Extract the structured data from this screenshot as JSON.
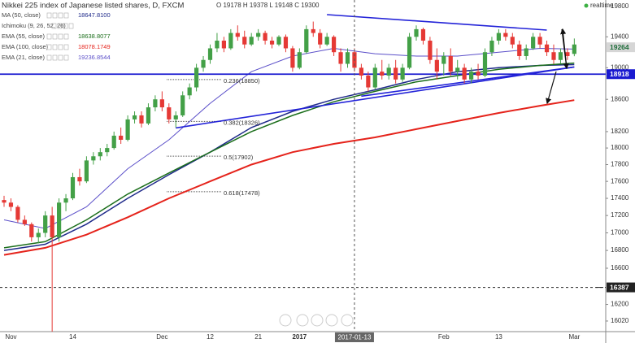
{
  "chart_data": {
    "type": "candlestick",
    "title": "Nikkei 225 index of Japanese listed shares, D, FXCM",
    "ohlc_label": "O 19178 H 19378 L 19148 C 19300",
    "realtime_label": "realtime",
    "log_scale": true,
    "grid": false,
    "up_color": "#43a047",
    "down_color": "#e53935",
    "categories": [
      null,
      "Nov",
      null,
      null,
      null,
      null,
      null,
      null,
      null,
      null,
      "14",
      null,
      null,
      null,
      null,
      null,
      null,
      null,
      null,
      null,
      null,
      null,
      null,
      "Dec",
      null,
      null,
      null,
      null,
      null,
      null,
      "12",
      null,
      null,
      null,
      null,
      null,
      null,
      "21",
      null,
      null,
      null,
      null,
      null,
      "2017",
      null,
      null,
      null,
      null,
      null,
      null,
      null,
      null,
      null,
      null,
      null,
      null,
      null,
      null,
      null,
      null,
      null,
      null,
      null,
      null,
      "Feb",
      null,
      null,
      null,
      null,
      null,
      null,
      null,
      "13",
      null,
      null,
      null,
      null,
      null,
      null,
      null,
      null,
      null,
      null,
      "Mar"
    ],
    "open": [
      17380,
      17350,
      17300,
      17150,
      17100,
      16950,
      17000,
      17200,
      16950,
      17350,
      17400,
      17650,
      17600,
      17850,
      17900,
      17950,
      18000,
      18150,
      18100,
      18350,
      18400,
      18300,
      18500,
      18600,
      18500,
      18350,
      18400,
      18650,
      18750,
      19000,
      19100,
      19250,
      19350,
      19250,
      19450,
      19400,
      19300,
      19400,
      19450,
      19350,
      19300,
      19400,
      19250,
      19000,
      19200,
      19500,
      19450,
      19300,
      19400,
      19200,
      19050,
      19200,
      19000,
      18900,
      18750,
      18950,
      18900,
      19000,
      18850,
      19000,
      19400,
      19500,
      19350,
      19100,
      19050,
      19150,
      18950,
      19000,
      18850,
      18950,
      18900,
      19200,
      19350,
      19450,
      19400,
      19300,
      19150,
      19250,
      19400,
      19300,
      19200,
      19100,
      19200,
      19178
    ],
    "high": [
      17430,
      17400,
      17320,
      17200,
      17120,
      17050,
      17250,
      17300,
      17400,
      17450,
      17700,
      17750,
      17900,
      17950,
      18000,
      18050,
      18200,
      18250,
      18400,
      18450,
      18450,
      18550,
      18650,
      18700,
      18550,
      18450,
      18700,
      18800,
      19050,
      19150,
      19300,
      19450,
      19400,
      19500,
      19550,
      19480,
      19450,
      19500,
      19480,
      19400,
      19420,
      19430,
      19280,
      19250,
      19550,
      19600,
      19500,
      19450,
      19420,
      19250,
      19250,
      19250,
      19050,
      18950,
      19050,
      19100,
      19050,
      19100,
      19050,
      19450,
      19550,
      19520,
      19400,
      19250,
      19200,
      19250,
      19100,
      19050,
      19000,
      19050,
      19250,
      19400,
      19500,
      19500,
      19450,
      19350,
      19300,
      19450,
      19450,
      19350,
      19300,
      19250,
      19250,
      19378
    ],
    "low": [
      17300,
      17250,
      17120,
      17080,
      16900,
      16880,
      16950,
      15900,
      16900,
      17250,
      17380,
      17550,
      17580,
      17800,
      17850,
      17900,
      17980,
      18050,
      18080,
      18300,
      18250,
      18280,
      18450,
      18450,
      18300,
      18250,
      18380,
      18600,
      18700,
      18950,
      19050,
      19200,
      19200,
      19230,
      19350,
      19250,
      19280,
      19350,
      19300,
      19250,
      19280,
      19200,
      18950,
      18980,
      19180,
      19400,
      19250,
      19280,
      19150,
      18950,
      19000,
      18950,
      18850,
      18700,
      18720,
      18850,
      18850,
      18800,
      18820,
      18980,
      19350,
      19300,
      19050,
      18850,
      18900,
      18900,
      18850,
      18800,
      18800,
      18850,
      18880,
      19150,
      19300,
      19350,
      19250,
      19100,
      19100,
      19230,
      19250,
      19150,
      19050,
      19050,
      19100,
      19148
    ],
    "close": [
      17350,
      17300,
      17150,
      17100,
      16950,
      17000,
      17200,
      16950,
      17350,
      17400,
      17650,
      17600,
      17850,
      17900,
      17950,
      18000,
      18150,
      18100,
      18350,
      18400,
      18300,
      18500,
      18600,
      18500,
      18350,
      18400,
      18650,
      18750,
      19000,
      19100,
      19250,
      19350,
      19250,
      19450,
      19400,
      19300,
      19400,
      19450,
      19350,
      19300,
      19400,
      19250,
      19000,
      19200,
      19500,
      19450,
      19300,
      19400,
      19200,
      19050,
      19200,
      19000,
      18900,
      18750,
      19000,
      18900,
      19000,
      18850,
      19000,
      19400,
      19500,
      19350,
      19100,
      18950,
      19150,
      18950,
      19000,
      18850,
      18950,
      18900,
      19200,
      19350,
      19450,
      19400,
      19300,
      19150,
      19250,
      19400,
      19300,
      19200,
      19100,
      19200,
      19150,
      19300
    ],
    "ylim": [
      15906,
      19887
    ],
    "yticks": [
      19800,
      19400,
      19000,
      18600,
      18200,
      18000,
      17800,
      17600,
      17400,
      17200,
      17000,
      16800,
      16600,
      16200,
      16020
    ],
    "lines": [
      {
        "name": "MA (50, close)",
        "legend_value": "18647.8100",
        "color": "#1f2a8a",
        "width": 1.5,
        "x": [
          0,
          6,
          12,
          18,
          24,
          30,
          36,
          42,
          48,
          54,
          60,
          66,
          72,
          78,
          83
        ],
        "values": [
          16800,
          16870,
          17100,
          17400,
          17680,
          17950,
          18250,
          18450,
          18600,
          18720,
          18850,
          18950,
          19000,
          19030,
          19040
        ]
      },
      {
        "name": "EMA (55, close)",
        "legend_value": "18638.8077",
        "color": "#1b6e1b",
        "width": 1.5,
        "x": [
          0,
          6,
          12,
          18,
          24,
          30,
          36,
          42,
          48,
          54,
          60,
          66,
          72,
          78,
          83
        ],
        "values": [
          16830,
          16900,
          17150,
          17450,
          17700,
          17950,
          18200,
          18400,
          18570,
          18700,
          18820,
          18900,
          18980,
          19030,
          19060
        ]
      },
      {
        "name": "EMA (100, close)",
        "legend_value": "18078.1749",
        "color": "#e5231b",
        "width": 2,
        "x": [
          0,
          6,
          12,
          18,
          24,
          30,
          36,
          42,
          48,
          54,
          60,
          66,
          72,
          78,
          83
        ],
        "values": [
          16750,
          16830,
          16980,
          17180,
          17400,
          17600,
          17800,
          17950,
          18050,
          18130,
          18230,
          18330,
          18430,
          18520,
          18590
        ]
      },
      {
        "name": "EMA (21, close)",
        "legend_value": "19236.8544",
        "color": "#5b4fc9",
        "width": 1,
        "x": [
          0,
          6,
          12,
          18,
          24,
          30,
          36,
          42,
          48,
          54,
          60,
          66,
          72,
          78,
          83
        ],
        "values": [
          17150,
          17050,
          17300,
          17750,
          18100,
          18550,
          18950,
          19150,
          19250,
          19180,
          19150,
          19150,
          19200,
          19250,
          19240
        ]
      }
    ],
    "hidden_indicator": "Ichimoku (9, 26, 52, 26)",
    "trendlines": [
      {
        "color": "#2323d8",
        "x": [
          47,
          79
        ],
        "values": [
          19692,
          19488
        ]
      },
      {
        "color": "#2323d8",
        "x": [
          25,
          83
        ],
        "values": [
          18245,
          19010
        ]
      },
      {
        "color": "#2323d8",
        "x": [
          52,
          83
        ],
        "values": [
          18640,
          19010
        ]
      }
    ],
    "fibonacci": [
      {
        "label": "0.236(18850)",
        "value": 18850
      },
      {
        "label": "0.382(18326)",
        "value": 18326
      },
      {
        "label": "0.5(17902)",
        "value": 17902
      },
      {
        "label": "0.618(17478)",
        "value": 17478
      }
    ],
    "last_price": 19264,
    "levels": [
      {
        "value": 18918,
        "color": "#1a1ad0",
        "style": "solid"
      },
      {
        "value": 16387,
        "color": "#222222",
        "style": "dashed"
      }
    ],
    "crosshair": {
      "index": 51,
      "label": "2017-01-13"
    }
  }
}
